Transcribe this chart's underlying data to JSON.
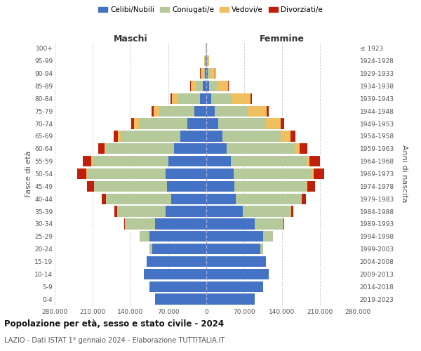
{
  "age_groups": [
    "0-4",
    "5-9",
    "10-14",
    "15-19",
    "20-24",
    "25-29",
    "30-34",
    "35-39",
    "40-44",
    "45-49",
    "50-54",
    "55-59",
    "60-64",
    "65-69",
    "70-74",
    "75-79",
    "80-84",
    "85-89",
    "90-94",
    "95-99",
    "100+"
  ],
  "birth_years": [
    "2019-2023",
    "2014-2018",
    "2009-2013",
    "2004-2008",
    "1999-2003",
    "1994-1998",
    "1989-1993",
    "1984-1988",
    "1979-1983",
    "1974-1978",
    "1969-1973",
    "1964-1968",
    "1959-1963",
    "1954-1958",
    "1949-1953",
    "1944-1948",
    "1939-1943",
    "1934-1938",
    "1929-1933",
    "1924-1928",
    "≤ 1923"
  ],
  "colors": {
    "celibi": "#4472c4",
    "coniugati": "#b5c99a",
    "vedovi": "#f0c060",
    "divorziati": "#c0200a"
  },
  "males": {
    "celibi": [
      95000,
      105000,
      115000,
      110000,
      100000,
      105000,
      95000,
      75000,
      65000,
      72000,
      75000,
      70000,
      60000,
      48000,
      35000,
      22000,
      12000,
      6000,
      3000,
      1500,
      500
    ],
    "coniugati": [
      50,
      100,
      200,
      500,
      5000,
      18000,
      55000,
      90000,
      120000,
      135000,
      145000,
      140000,
      125000,
      110000,
      90000,
      65000,
      40000,
      14000,
      4000,
      1000,
      200
    ],
    "vedovi": [
      1,
      2,
      5,
      10,
      20,
      50,
      100,
      200,
      500,
      1000,
      1500,
      2000,
      3000,
      5000,
      8000,
      10000,
      12000,
      8000,
      3500,
      1200,
      100
    ],
    "divorziati": [
      2,
      5,
      10,
      50,
      200,
      500,
      2000,
      5000,
      8000,
      13000,
      17000,
      16000,
      12000,
      8000,
      6000,
      4000,
      2500,
      1500,
      800,
      300,
      50
    ]
  },
  "females": {
    "nubili": [
      90000,
      105000,
      115000,
      110000,
      100000,
      105000,
      90000,
      68000,
      55000,
      52000,
      50000,
      45000,
      38000,
      30000,
      22000,
      15000,
      9000,
      5000,
      3000,
      1500,
      500
    ],
    "coniugate": [
      50,
      100,
      200,
      500,
      5000,
      18000,
      52000,
      88000,
      120000,
      133000,
      145000,
      140000,
      125000,
      108000,
      88000,
      62000,
      38000,
      15000,
      5000,
      1500,
      200
    ],
    "vedove": [
      1,
      2,
      5,
      10,
      20,
      50,
      150,
      300,
      800,
      1500,
      3000,
      5000,
      10000,
      18000,
      28000,
      35000,
      35000,
      20000,
      8000,
      2000,
      200
    ],
    "divorziate": [
      2,
      5,
      10,
      40,
      150,
      400,
      1500,
      4500,
      8000,
      15000,
      20000,
      20000,
      14000,
      8000,
      6000,
      4000,
      2500,
      1500,
      800,
      300,
      50
    ]
  },
  "xlim": 280000,
  "title_main": "Popolazione per età, sesso e stato civile - 2024",
  "title_sub": "LAZIO - Dati ISTAT 1° gennaio 2024 - Elaborazione TUTTITALIA.IT",
  "ylabel_left": "Fasce di età",
  "ylabel_right": "Anni di nascita",
  "label_maschi": "Maschi",
  "label_femmine": "Femmine",
  "legend_labels": [
    "Celibi/Nubili",
    "Coniugati/e",
    "Vedovi/e",
    "Divorziati/e"
  ]
}
